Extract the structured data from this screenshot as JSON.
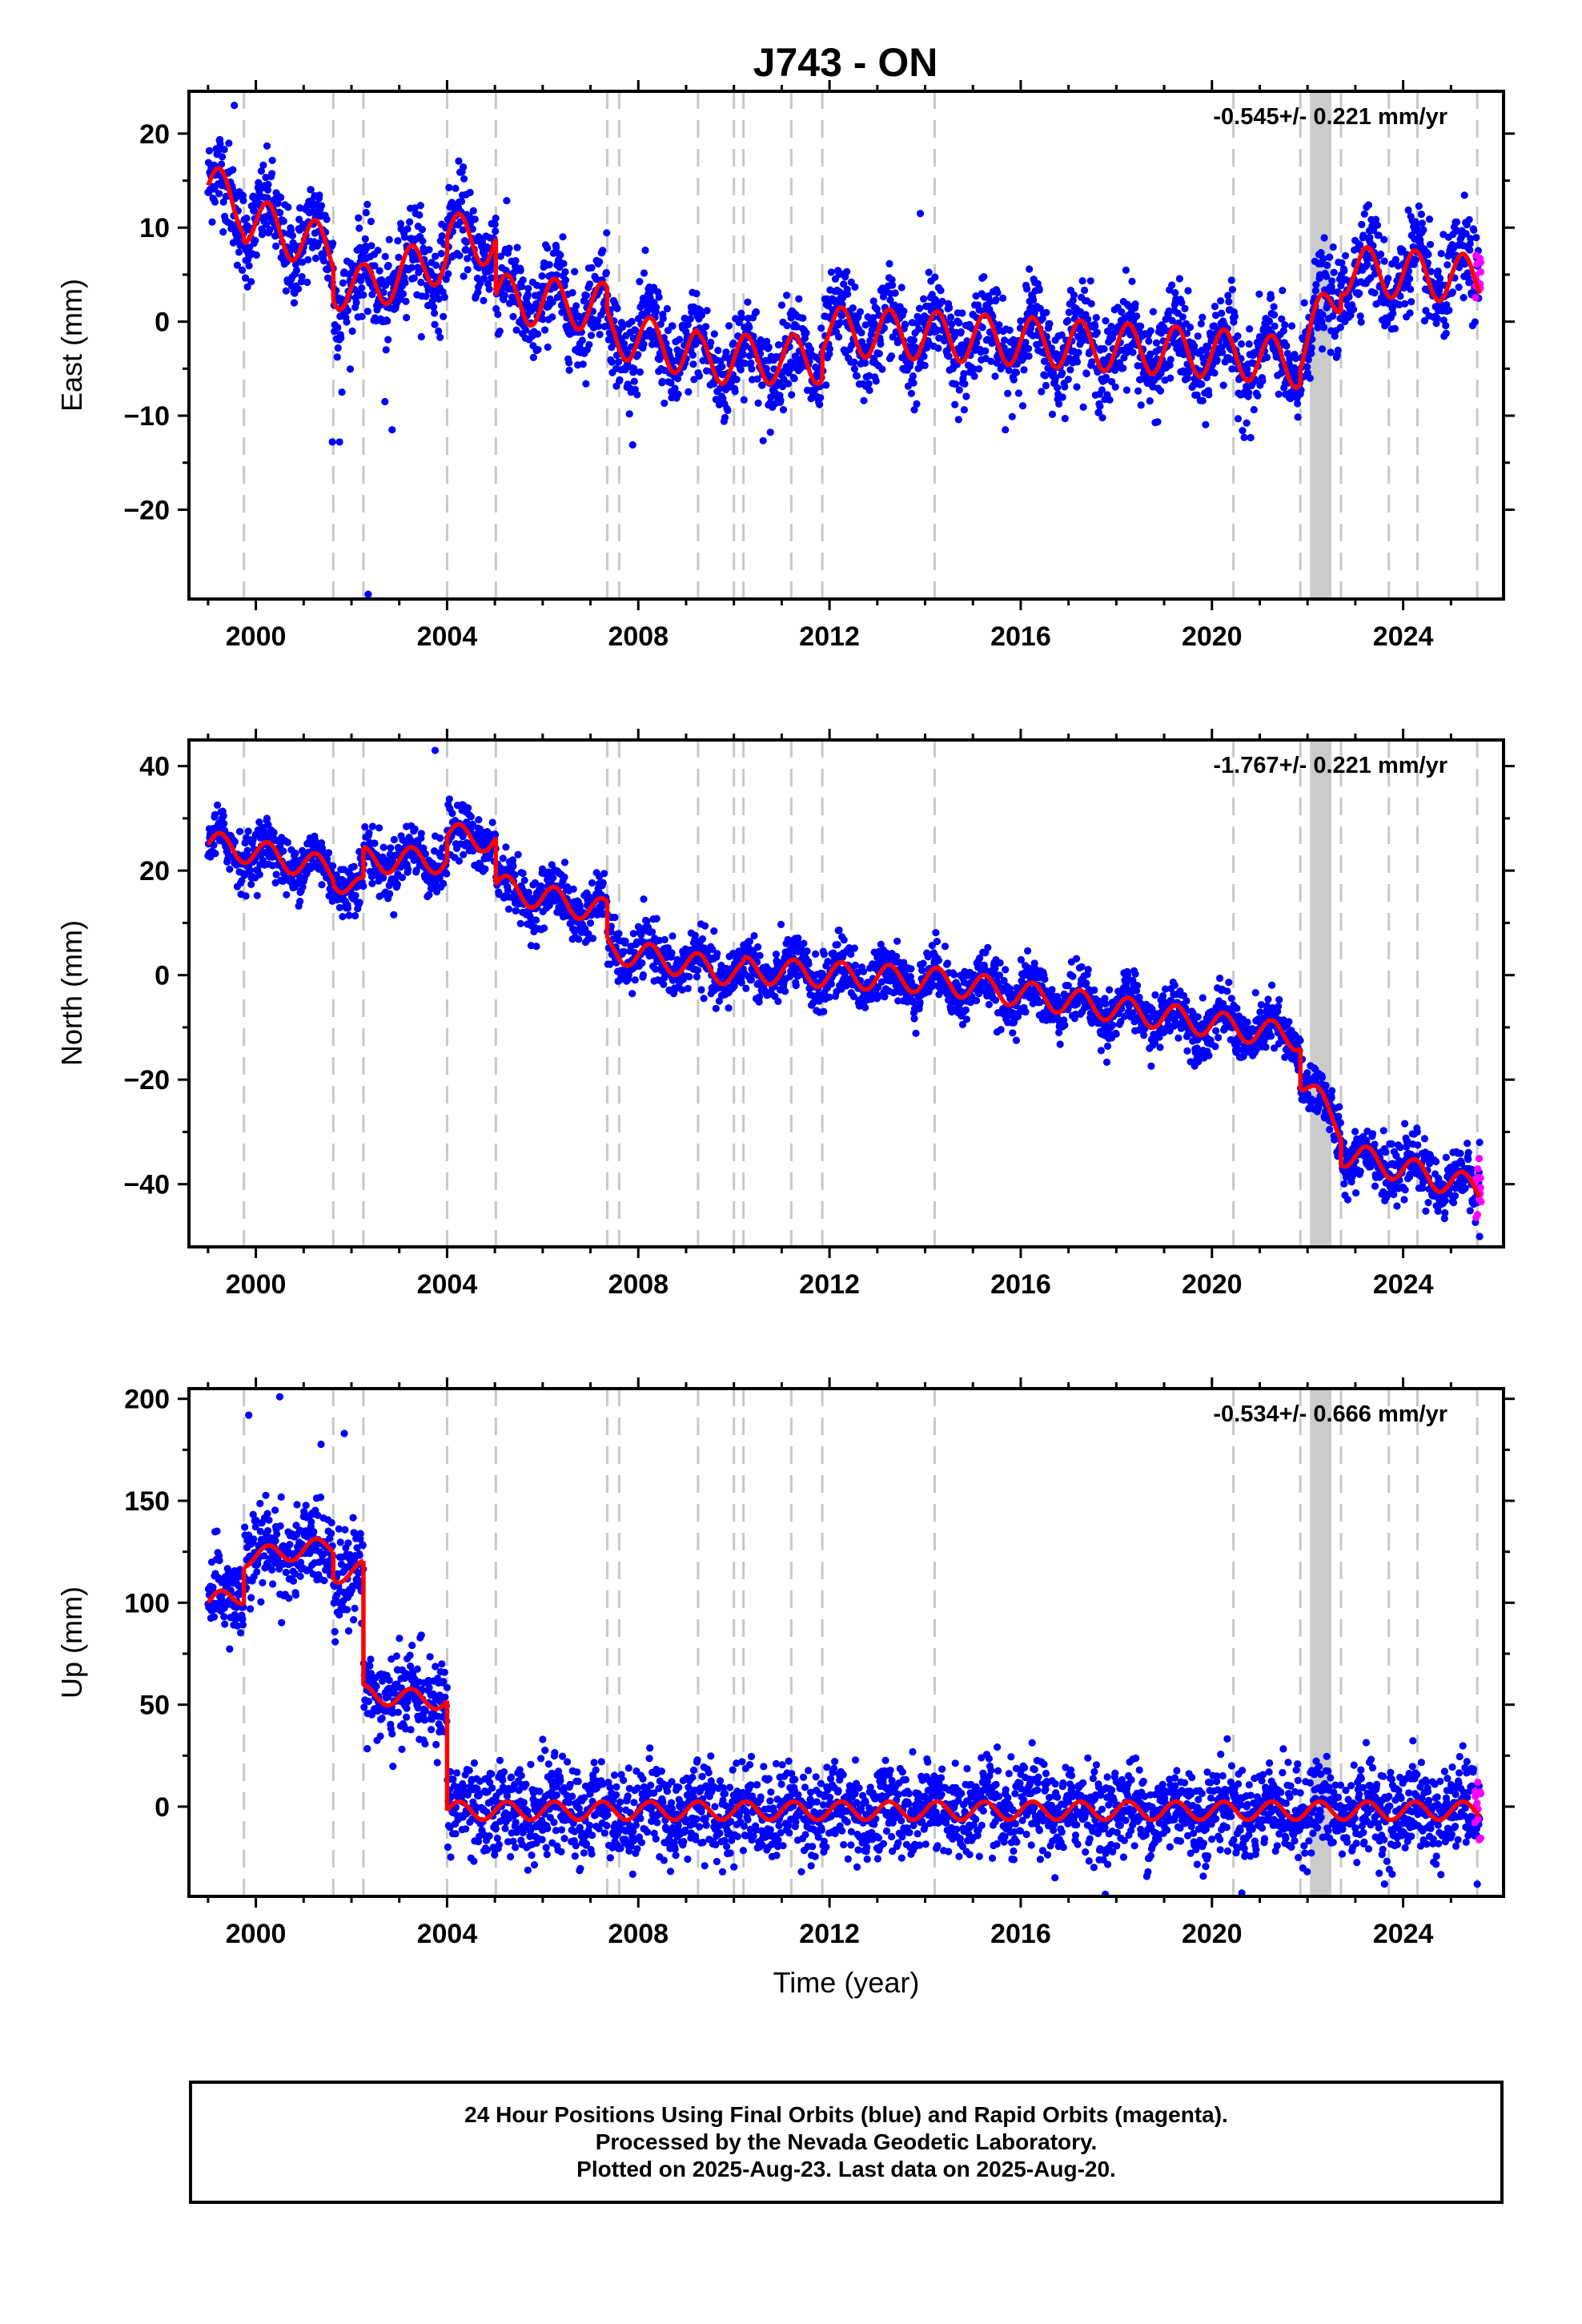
{
  "title": "J743 - ON",
  "colors": {
    "final_orbits": "#0000ff",
    "rapid_orbits": "#ff00ff",
    "model": "#ff0000",
    "event_lines": "#c8c8c8",
    "frame": "#000000"
  },
  "x_axis": {
    "label": "Time (year)",
    "ticks": [
      "2000",
      "2004",
      "2008",
      "2012",
      "2016",
      "2020",
      "2024"
    ],
    "xlim": [
      1998.6,
      2026.1
    ]
  },
  "chart_data": [
    {
      "type": "scatter",
      "ylabel": "East (mm)",
      "ylim": [
        -29.5,
        24.5
      ],
      "yticks": [
        "20",
        "10",
        "0",
        "−10",
        "−20"
      ],
      "rate_text": "-0.545+/- 0.221 mm/yr",
      "grid": false,
      "event_lines": [
        1999.75,
        2001.62,
        2002.25,
        2004.0,
        2005.02,
        2007.35,
        2007.6,
        2009.25,
        2010.0,
        2010.2,
        2011.2,
        2011.85,
        2014.2,
        2020.45,
        2021.85,
        2022.7,
        2023.7,
        2024.3,
        2025.55
      ],
      "shaded_band": [
        2022.05,
        2022.5
      ],
      "series": [
        {
          "key": "final",
          "noise": 2.4,
          "color": "#0000ff"
        },
        {
          "key": "rapid",
          "noise": 1.5,
          "color": "#ff00ff",
          "x_range": [
            2025.5,
            2025.63
          ]
        },
        {
          "key": "model",
          "color": "#ff0000",
          "seasonal_amplitude": 2.6
        }
      ],
      "trend_segments": [
        {
          "x0": 1999.0,
          "x1": 1999.75,
          "y0": 14.5,
          "y1": 12.0
        },
        {
          "x0": 1999.75,
          "x1": 2001.62,
          "y0": 11.0,
          "y1": 7.5
        },
        {
          "x0": 2001.62,
          "x1": 2002.25,
          "y0": 4.0,
          "y1": 3.5
        },
        {
          "x0": 2002.25,
          "x1": 2004.0,
          "y0": 3.5,
          "y1": 7.0
        },
        {
          "x0": 2004.0,
          "x1": 2005.02,
          "y0": 9.0,
          "y1": 8.5
        },
        {
          "x0": 2005.02,
          "x1": 2007.35,
          "y0": 2.5,
          "y1": 1.5
        },
        {
          "x0": 2007.35,
          "x1": 2009.25,
          "y0": -1.0,
          "y1": -3.5
        },
        {
          "x0": 2009.25,
          "x1": 2011.85,
          "y0": -4.0,
          "y1": -4.0
        },
        {
          "x0": 2011.85,
          "x1": 2014.2,
          "y0": -1.0,
          "y1": -1.5
        },
        {
          "x0": 2014.2,
          "x1": 2020.45,
          "y0": -1.5,
          "y1": -3.5
        },
        {
          "x0": 2020.45,
          "x1": 2021.85,
          "y0": -3.5,
          "y1": -4.5
        },
        {
          "x0": 2021.85,
          "x1": 2022.7,
          "y0": -3.0,
          "y1": 3.5
        },
        {
          "x0": 2022.7,
          "x1": 2025.6,
          "y0": 5.5,
          "y1": 4.5
        }
      ],
      "outliers": [
        [
          1999.55,
          23.0
        ],
        [
          2001.6,
          -12.8
        ],
        [
          2001.75,
          -12.8
        ],
        [
          2002.35,
          -29.0
        ],
        [
          2002.85,
          -11.5
        ],
        [
          2013.9,
          11.5
        ],
        [
          2002.7,
          -8.5
        ],
        [
          2001.8,
          -7.5
        ]
      ]
    },
    {
      "type": "scatter",
      "ylabel": "North (mm)",
      "ylim": [
        -52,
        45
      ],
      "yticks": [
        "40",
        "20",
        "0",
        "−20",
        "−40"
      ],
      "rate_text": "-1.767+/- 0.221 mm/yr",
      "grid": false,
      "event_lines": [
        1999.75,
        2001.62,
        2002.25,
        2004.0,
        2005.02,
        2007.35,
        2007.6,
        2009.25,
        2010.0,
        2010.2,
        2011.2,
        2011.85,
        2014.2,
        2020.45,
        2021.85,
        2022.7,
        2023.7,
        2024.3,
        2025.55
      ],
      "shaded_band": [
        2022.05,
        2022.5
      ],
      "series": [
        {
          "key": "final",
          "noise": 2.6,
          "color": "#0000ff"
        },
        {
          "key": "rapid",
          "noise": 2.5,
          "color": "#ff00ff",
          "x_range": [
            2025.5,
            2025.63
          ]
        },
        {
          "key": "model",
          "color": "#ff0000",
          "seasonal_amplitude": 2.5
        }
      ],
      "trend_segments": [
        {
          "x0": 1999.0,
          "x1": 1999.75,
          "y0": 25.0,
          "y1": 24.0
        },
        {
          "x0": 1999.75,
          "x1": 2001.62,
          "y0": 24.0,
          "y1": 20.0
        },
        {
          "x0": 2001.62,
          "x1": 2002.25,
          "y0": 19.0,
          "y1": 16.0
        },
        {
          "x0": 2002.25,
          "x1": 2004.0,
          "y0": 22.0,
          "y1": 22.0
        },
        {
          "x0": 2004.0,
          "x1": 2005.02,
          "y0": 26.5,
          "y1": 26.0
        },
        {
          "x0": 2005.02,
          "x1": 2007.35,
          "y0": 17.0,
          "y1": 12.0
        },
        {
          "x0": 2007.35,
          "x1": 2010.2,
          "y0": 5.0,
          "y1": 0.0
        },
        {
          "x0": 2010.2,
          "x1": 2014.2,
          "y0": 1.0,
          "y1": -1.0
        },
        {
          "x0": 2014.2,
          "x1": 2021.85,
          "y0": -1.0,
          "y1": -12.0
        },
        {
          "x0": 2021.85,
          "x1": 2022.7,
          "y0": -20.0,
          "y1": -29.0
        },
        {
          "x0": 2022.7,
          "x1": 2025.6,
          "y0": -34.0,
          "y1": -41.0
        }
      ],
      "outliers": [
        [
          2003.75,
          43.0
        ],
        [
          2025.6,
          -50.0
        ],
        [
          2025.6,
          -32.0
        ]
      ]
    },
    {
      "type": "scatter",
      "ylabel": "Up (mm)",
      "ylim": [
        -44,
        205
      ],
      "yticks": [
        "200",
        "150",
        "100",
        "50",
        "0"
      ],
      "rate_text": "-0.534+/- 0.666 mm/yr",
      "grid": false,
      "event_lines": [
        1999.75,
        2001.62,
        2002.25,
        2004.0,
        2005.02,
        2007.35,
        2007.6,
        2009.25,
        2010.0,
        2010.2,
        2011.2,
        2011.85,
        2014.2,
        2020.45,
        2021.85,
        2022.7,
        2023.7,
        2024.3,
        2025.55
      ],
      "shaded_band": [
        2022.05,
        2022.5
      ],
      "series": [
        {
          "key": "final",
          "noise": 11.0,
          "color": "#0000ff",
          "x_gap": [
            2003.55,
            2003.6
          ]
        },
        {
          "key": "rapid",
          "noise": 9.0,
          "color": "#ff00ff",
          "x_range": [
            2025.5,
            2025.63
          ]
        },
        {
          "key": "model",
          "color": "#ff0000",
          "seasonal_amplitude": 4.5
        }
      ],
      "trend_segments": [
        {
          "x0": 1999.0,
          "x1": 1999.75,
          "y0": 100.0,
          "y1": 104.0
        },
        {
          "x0": 1999.75,
          "x1": 2001.62,
          "y0": 122.0,
          "y1": 128.0
        },
        {
          "x0": 2001.62,
          "x1": 2002.25,
          "y0": 114.0,
          "y1": 116.0
        },
        {
          "x0": 2002.25,
          "x1": 2004.0,
          "y0": 55.0,
          "y1": 52.0
        },
        {
          "x0": 2004.0,
          "x1": 2025.6,
          "y0": -2.0,
          "y1": -2.0
        }
      ],
      "data_x_ranges": [
        [
          1999.0,
          2003.55
        ],
        [
          2003.6,
          2025.6
        ]
      ],
      "outliers": [
        [
          2000.5,
          201.0
        ],
        [
          1999.85,
          192.0
        ],
        [
          2001.85,
          183.0
        ],
        [
          2025.55,
          -38.0
        ],
        [
          2006.0,
          33.0
        ]
      ]
    }
  ],
  "caption": {
    "line1": "24 Hour Positions Using Final Orbits (blue) and Rapid Orbits (magenta).",
    "line2": "Processed by the Nevada Geodetic Laboratory.",
    "line3": "Plotted on 2025-Aug-23. Last data on 2025-Aug-20."
  }
}
